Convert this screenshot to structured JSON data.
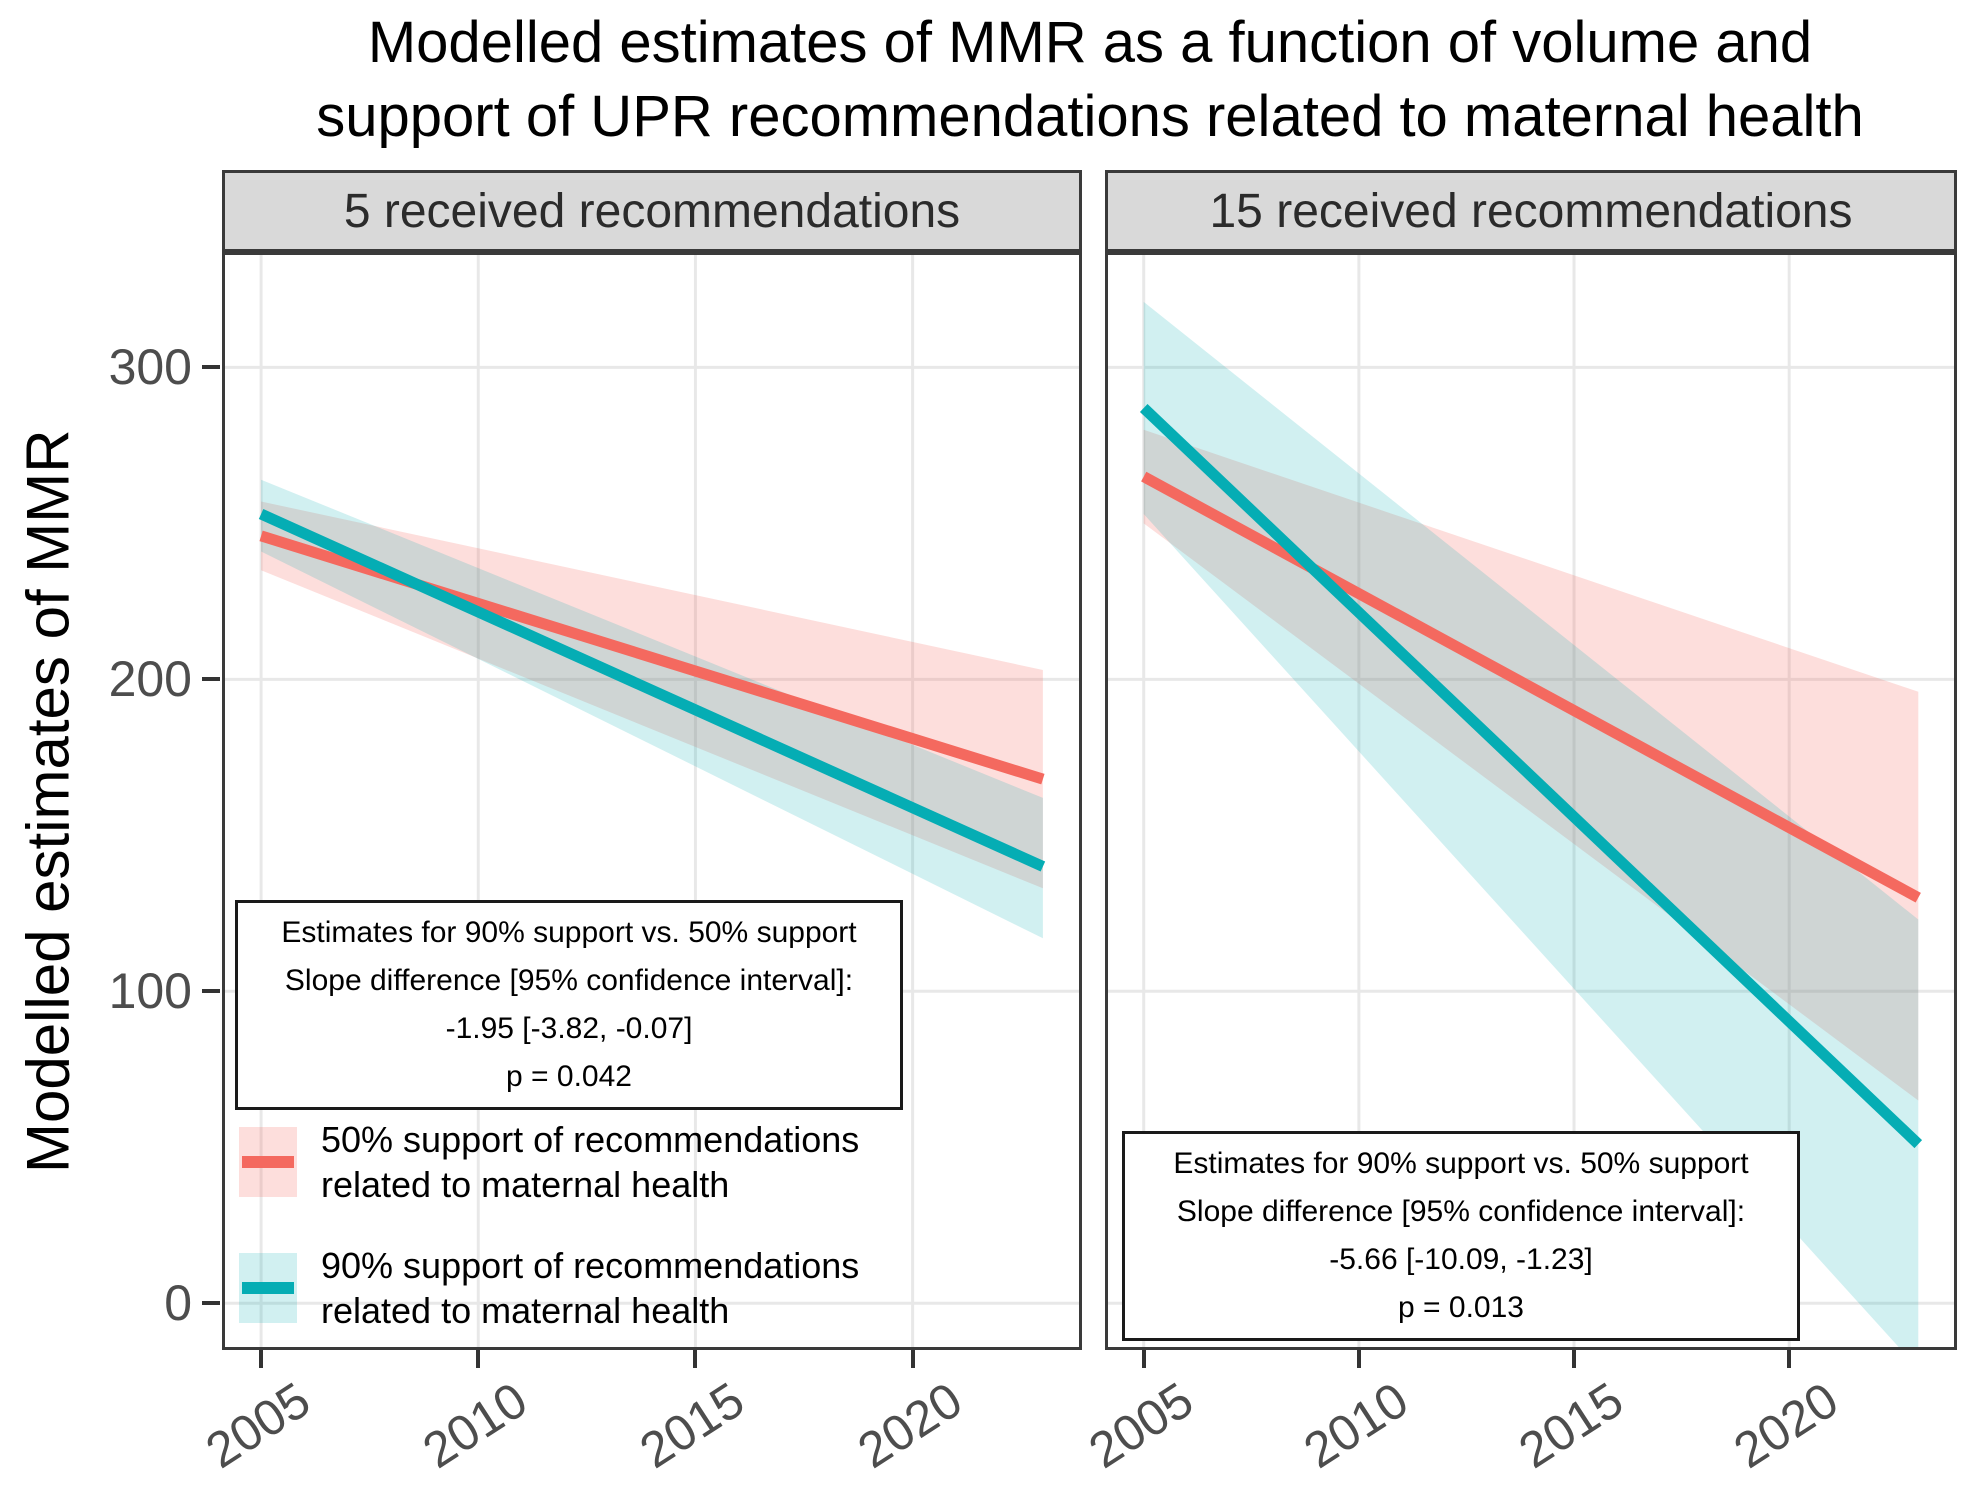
{
  "ui": {
    "title": "Modelled estimates of MMR as a function of volume and\nsupport of UPR recommendations related to maternal health",
    "colors": {
      "red_line": "#F4695F",
      "teal_line": "#05ADB4",
      "red_ribbon": "rgba(244,105,95,0.22)",
      "teal_ribbon": "rgba(0,173,180,0.18)",
      "strip_background": "#D9D9D9",
      "panel_border": "#3A3A3A",
      "gridline": "#E8E8E8",
      "axis_text": "#4D4D4D"
    },
    "legend": {
      "items": [
        {
          "label": "50% support of recommendations\nrelated to maternal health",
          "line_color": "#F4695F",
          "fill_color": "rgba(244,105,95,0.22)"
        },
        {
          "label": "90% support of recommendations\nrelated to maternal health",
          "line_color": "#05ADB4",
          "fill_color": "rgba(0,173,180,0.18)"
        }
      ]
    }
  },
  "chart_data": {
    "type": "line",
    "title": "Modelled estimates of MMR as a function of volume and support of UPR recommendations related to maternal health",
    "xlabel": "",
    "ylabel": "Modelled estimates of MMR",
    "x_ticks": [
      2005,
      2010,
      2015,
      2020
    ],
    "y_ticks": [
      0,
      100,
      200,
      300
    ],
    "xlim": [
      2004.1,
      2023.9
    ],
    "ylim": [
      -15,
      337
    ],
    "grid": "major-only",
    "legend_position": "inside bottom-left of first facet",
    "facets": [
      {
        "label": "5 received recommendations",
        "annotation": [
          "Estimates for 90% support vs. 50% support",
          "Slope difference [95% confidence interval]:",
          "-1.95 [-3.82, -0.07]",
          "p = 0.042"
        ],
        "series": [
          {
            "name": "50% support of recommendations related to maternal health",
            "x": [
              2005,
              2023
            ],
            "y": [
              246,
              168
            ],
            "ci_lower": [
              235,
              133
            ],
            "ci_upper": [
              257,
              203
            ]
          },
          {
            "name": "90% support of recommendations related to maternal health",
            "x": [
              2005,
              2023
            ],
            "y": [
              253,
              140
            ],
            "ci_lower": [
              241,
              117
            ],
            "ci_upper": [
              264,
              162
            ]
          }
        ]
      },
      {
        "label": "15 received recommendations",
        "annotation": [
          "Estimates for 90% support vs. 50% support",
          "Slope difference [95% confidence interval]:",
          "-5.66 [-10.09, -1.23]",
          "p = 0.013"
        ],
        "series": [
          {
            "name": "50% support of recommendations related to maternal health",
            "x": [
              2005,
              2023
            ],
            "y": [
              265,
              130
            ],
            "ci_lower": [
              250,
              65
            ],
            "ci_upper": [
              280,
              196
            ]
          },
          {
            "name": "90% support of recommendations related to maternal health",
            "x": [
              2005,
              2023
            ],
            "y": [
              287,
              51
            ],
            "ci_lower": [
              253,
              -21
            ],
            "ci_upper": [
              321,
              123
            ]
          }
        ]
      }
    ]
  }
}
